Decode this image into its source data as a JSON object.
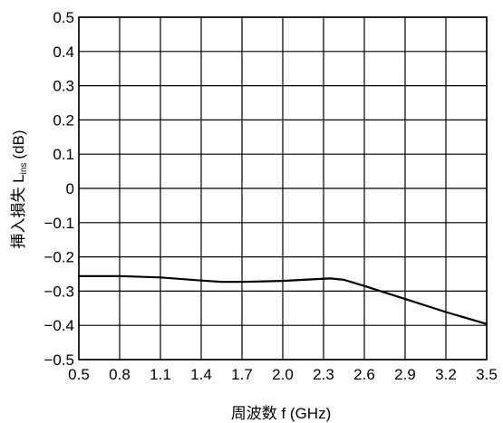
{
  "chart_data": {
    "type": "line",
    "xlabel": "周波数 f (GHz)",
    "ylabel_main": "挿入損失 L",
    "ylabel_sub": "ins",
    "ylabel_unit": "(dB)",
    "xlim": [
      0.5,
      3.5
    ],
    "ylim": [
      -0.5,
      0.5
    ],
    "xticks": [
      0.5,
      0.8,
      1.1,
      1.4,
      1.7,
      2.0,
      2.3,
      2.6,
      2.9,
      3.2,
      3.5
    ],
    "xtick_labels": [
      "0.5",
      "0.8",
      "1.1",
      "1.4",
      "1.7",
      "2.0",
      "2.3",
      "2.6",
      "2.9",
      "3.2",
      "3.5"
    ],
    "yticks": [
      0.5,
      0.4,
      0.3,
      0.2,
      0.1,
      0,
      -0.1,
      -0.2,
      -0.3,
      -0.4,
      -0.5
    ],
    "ytick_labels": [
      "0.5",
      "0.4",
      "0.3",
      "0.2",
      "0.1",
      "0",
      "−0.1",
      "−0.2",
      "−0.3",
      "−0.4",
      "−0.5"
    ],
    "grid": true,
    "series": [
      {
        "x": [
          0.5,
          0.8,
          1.1,
          1.4,
          1.55,
          1.7,
          2.0,
          2.2,
          2.35,
          2.45,
          2.6,
          2.9,
          3.2,
          3.5
        ],
        "y": [
          -0.256,
          -0.256,
          -0.26,
          -0.269,
          -0.273,
          -0.273,
          -0.27,
          -0.266,
          -0.263,
          -0.267,
          -0.285,
          -0.323,
          -0.361,
          -0.396
        ]
      }
    ]
  }
}
